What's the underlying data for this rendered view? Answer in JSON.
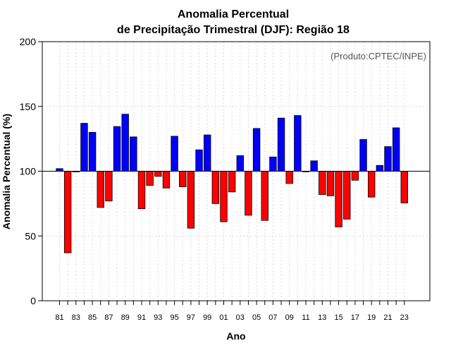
{
  "chart_data": {
    "type": "bar",
    "title_line1": "Anomalia Percentual",
    "title_line2": "de Precipitação Trimestral (DJF): Região 18",
    "credit": "(Produto:CPTEC/INPE)",
    "xlabel": "Ano",
    "ylabel": "Anomalia Percentual (%)",
    "ylim": [
      0,
      200
    ],
    "yticks": [
      0,
      50,
      100,
      150,
      200
    ],
    "baseline": 100,
    "grid": true,
    "colors": {
      "above": "#0000ff",
      "below": "#ff0000",
      "edge": "#000000"
    },
    "categories": [
      "81",
      "82",
      "83",
      "84",
      "85",
      "86",
      "87",
      "88",
      "89",
      "90",
      "91",
      "92",
      "93",
      "94",
      "95",
      "96",
      "97",
      "98",
      "99",
      "00",
      "01",
      "02",
      "03",
      "04",
      "05",
      "06",
      "07",
      "08",
      "09",
      "10",
      "11",
      "12",
      "13",
      "14",
      "15",
      "16",
      "17",
      "18",
      "19",
      "20",
      "21",
      "22",
      "23"
    ],
    "tick_labels": [
      "81",
      "83",
      "85",
      "87",
      "89",
      "91",
      "93",
      "95",
      "97",
      "99",
      "01",
      "03",
      "05",
      "07",
      "09",
      "11",
      "13",
      "15",
      "17",
      "19",
      "21",
      "23"
    ],
    "values": [
      102,
      37,
      99.5,
      137,
      130,
      72,
      77,
      134.5,
      144,
      126.5,
      71,
      89,
      96,
      87,
      127,
      88,
      56,
      116.5,
      128,
      75,
      61,
      84,
      112,
      66,
      133,
      62,
      111,
      141,
      90.5,
      143,
      99.5,
      108,
      82,
      81,
      57,
      63,
      93,
      124.5,
      80,
      104.5,
      119,
      133.5,
      75.5
    ]
  }
}
